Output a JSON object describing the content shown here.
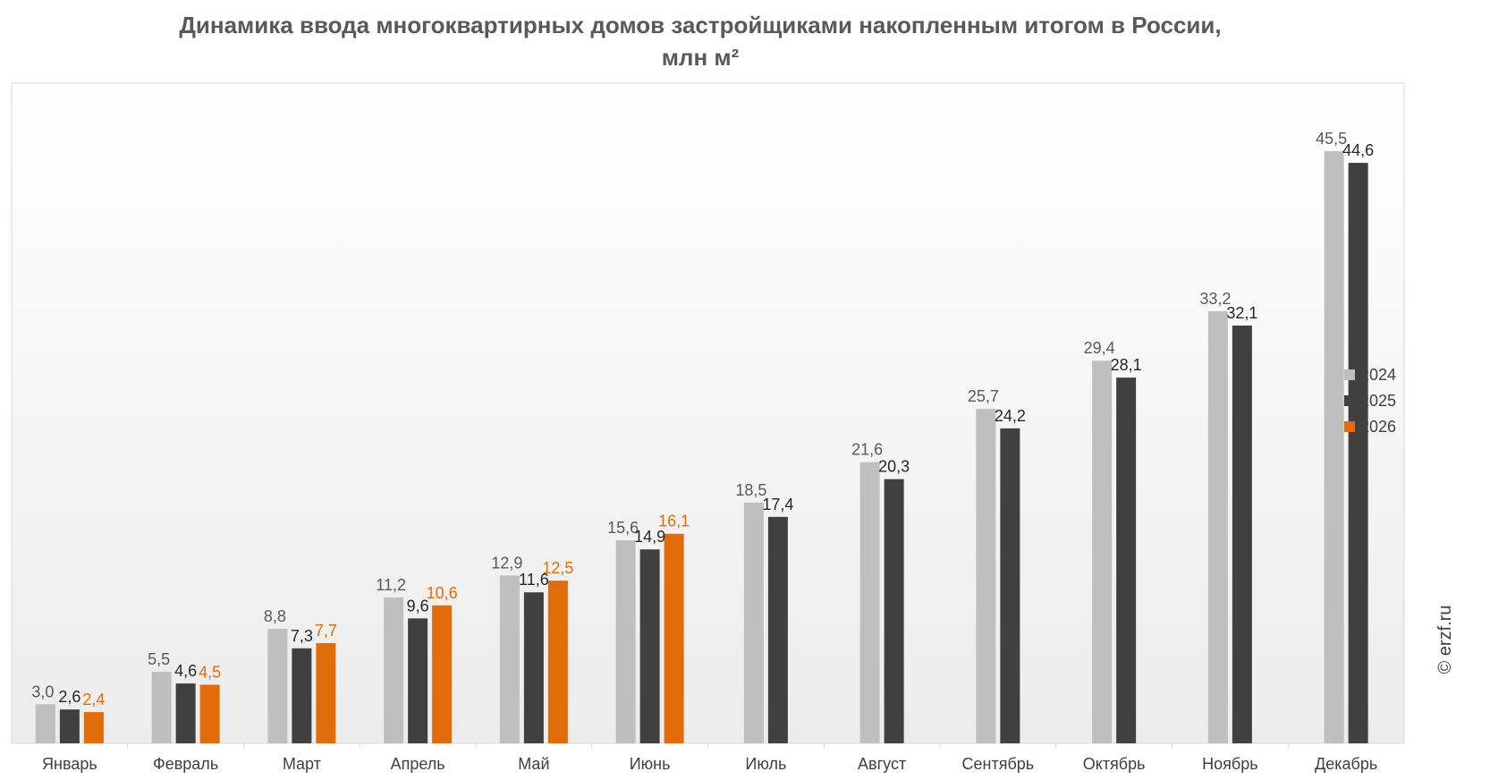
{
  "chart_data": {
    "type": "bar",
    "title": "Динамика ввода многоквартирных домов застройщиками накопленным итогом в России, млн м²",
    "categories": [
      "Январь",
      "Февраль",
      "Март",
      "Апрель",
      "Май",
      "Июнь",
      "Июль",
      "Август",
      "Сентябрь",
      "Октябрь",
      "Ноябрь",
      "Декабрь"
    ],
    "series": [
      {
        "name": "2024",
        "color": "#bfbfbf",
        "label_color": "#595959",
        "values": [
          3.0,
          5.5,
          8.8,
          11.2,
          12.9,
          15.6,
          18.5,
          21.6,
          25.7,
          29.4,
          33.2,
          45.5
        ],
        "labels": [
          "3,0",
          "5,5",
          "8,8",
          "11,2",
          "12,9",
          "15,6",
          "18,5",
          "21,6",
          "25,7",
          "29,4",
          "33,2",
          "45,5"
        ]
      },
      {
        "name": "2025",
        "color": "#404040",
        "label_color": "#262626",
        "values": [
          2.6,
          4.6,
          7.3,
          9.6,
          11.6,
          14.9,
          17.4,
          20.3,
          24.2,
          28.1,
          32.1,
          44.6
        ],
        "labels": [
          "2,6",
          "4,6",
          "7,3",
          "9,6",
          "11,6",
          "14,9",
          "17,4",
          "20,3",
          "24,2",
          "28,1",
          "32,1",
          "44,6"
        ]
      },
      {
        "name": "2026",
        "color": "#e36c0a",
        "label_color": "#e36c0a",
        "values": [
          2.4,
          4.5,
          7.7,
          10.6,
          12.5,
          16.1,
          null,
          null,
          null,
          null,
          null,
          null
        ],
        "labels": [
          "2,4",
          "4,5",
          "7,7",
          "10,6",
          "12,5",
          "16,1",
          null,
          null,
          null,
          null,
          null,
          null
        ]
      }
    ],
    "ylim": [
      0,
      48
    ],
    "grid": false,
    "legend_position": "right"
  },
  "watermark": "© erzf.ru"
}
